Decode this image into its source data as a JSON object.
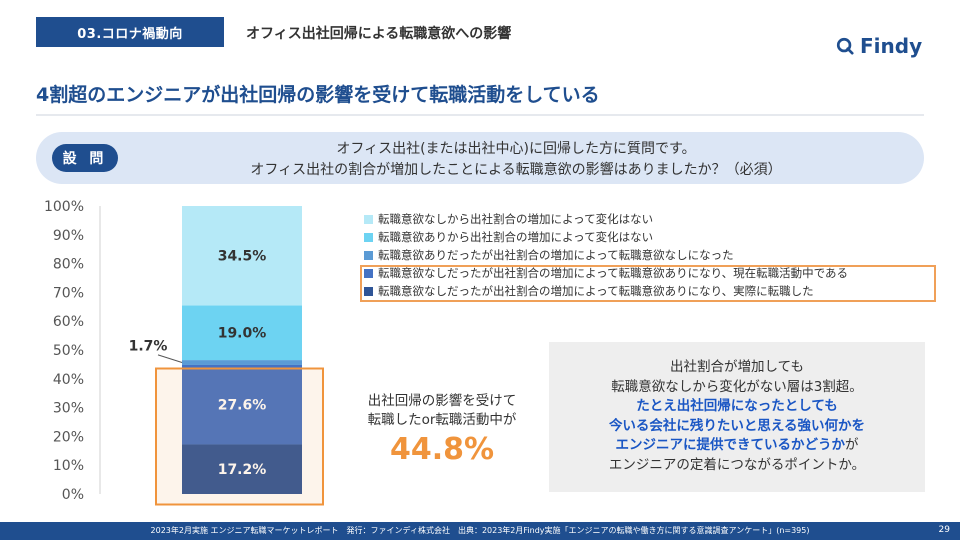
{
  "header": {
    "section_tag": "03.コロナ禍動向",
    "section_subtitle": "オフィス出社回帰による転職意欲への影響",
    "logo_text": "Findy",
    "headline": "4割超のエンジニアが出社回帰の影響を受けて転職活動をしている"
  },
  "question": {
    "badge": "設 問",
    "line1": "オフィス出社(または出社中心)に回帰した方に質問です。",
    "line2": "オフィス出社の割合が増加したことによる転職意欲の影響はありましたか？（必須）"
  },
  "chart_data": {
    "type": "bar",
    "stacked": true,
    "ylim": [
      0,
      100
    ],
    "yticks": [
      "0%",
      "10%",
      "20%",
      "30%",
      "40%",
      "50%",
      "60%",
      "70%",
      "80%",
      "90%",
      "100%"
    ],
    "series": [
      {
        "name": "転職意欲なしだったが出社割合の増加によって転職意欲ありになり、実際に転職した",
        "value": 17.2,
        "label": "17.2%",
        "color": "#2f5597"
      },
      {
        "name": "転職意欲なしだったが出社割合の増加によって転職意欲ありになり、現在転職活動中である",
        "value": 27.6,
        "label": "27.6%",
        "color": "#4472c4"
      },
      {
        "name": "転職意欲ありだったが出社割合の増加によって転職意欲なしになった",
        "value": 1.7,
        "label": "1.7%",
        "color": "#5b9bd5"
      },
      {
        "name": "転職意欲ありから出社割合の増加によって変化はない",
        "value": 19.0,
        "label": "19.0%",
        "color": "#6dd3f2"
      },
      {
        "name": "転職意欲なしから出社割合の増加によって変化はない",
        "value": 34.5,
        "label": "34.5%",
        "color": "#b5e9f7"
      }
    ]
  },
  "legend": {
    "items": [
      {
        "label": "転職意欲なしから出社割合の増加によって変化はない",
        "color": "#b5e9f7"
      },
      {
        "label": "転職意欲ありから出社割合の増加によって変化はない",
        "color": "#6dd3f2"
      },
      {
        "label": "転職意欲ありだったが出社割合の増加によって転職意欲なしになった",
        "color": "#5b9bd5"
      },
      {
        "label": "転職意欲なしだったが出社割合の増加によって転職意欲ありになり、現在転職活動中である",
        "color": "#4472c4"
      },
      {
        "label": "転職意欲なしだったが出社割合の増加によって転職意欲ありになり、実際に転職した",
        "color": "#2f5597"
      }
    ]
  },
  "callout": {
    "line1": "出社回帰の影響を受けて",
    "line2": "転職したor転職活動中が",
    "value": "44.8%"
  },
  "insight": {
    "line1": "出社割合が増加しても",
    "line2": "転職意欲なしから変化がない層は3割超。",
    "line3": "たとえ出社回帰になったとしても",
    "line4": "今いる会社に残りたいと思える強い何かを",
    "line5a": "エンジニアに提供できているかどうか",
    "line5b": "が",
    "line6": "エンジニアの定着につながるポイントか。"
  },
  "footer": {
    "text": "2023年2月実施 エンジニア転職マーケットレポート　発行：ファインディ株式会社　出典：2023年2月Findy実施「エンジニアの転職や働き方に関する意識調査アンケート」(n=395)",
    "page": "29"
  },
  "colors": {
    "brand": "#1f4e8f",
    "accent": "#f0943c",
    "highlight_text": "#1a56c4"
  }
}
